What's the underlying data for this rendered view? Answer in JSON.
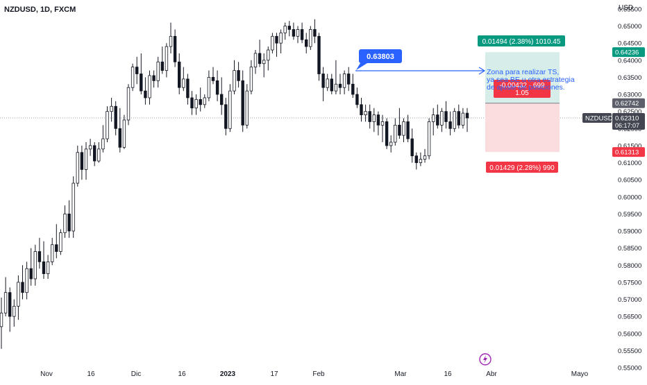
{
  "header": {
    "symbol_line": "NZDUSD, 1D, FXCM",
    "currency": "USD"
  },
  "chart_data": {
    "type": "candlestick",
    "y_axis": {
      "ticks": [
        "0.65500",
        "0.65000",
        "0.64500",
        "0.64000",
        "0.63500",
        "0.63000",
        "0.62500",
        "0.62000",
        "0.61500",
        "0.61000",
        "0.60500",
        "0.60000",
        "0.59500",
        "0.59000",
        "0.58500",
        "0.58000",
        "0.57500",
        "0.57000",
        "0.56500",
        "0.56000",
        "0.55500",
        "0.55000"
      ],
      "range": [
        0.55,
        0.656
      ]
    },
    "x_axis": {
      "ticks": [
        {
          "label": "Nov",
          "bold": false
        },
        {
          "label": "16",
          "bold": false
        },
        {
          "label": "Dic",
          "bold": false
        },
        {
          "label": "16",
          "bold": false
        },
        {
          "label": "2023",
          "bold": true
        },
        {
          "label": "17",
          "bold": false
        },
        {
          "label": "Feb",
          "bold": false
        },
        {
          "label": "Mar",
          "bold": false
        },
        {
          "label": "16",
          "bold": false
        },
        {
          "label": "Abr",
          "bold": false
        },
        {
          "label": "Mayo",
          "bold": false
        }
      ]
    },
    "candles": [
      [
        0.562,
        0.5705,
        0.5555,
        0.566
      ],
      [
        0.566,
        0.5765,
        0.565,
        0.572
      ],
      [
        0.572,
        0.5735,
        0.5605,
        0.565
      ],
      [
        0.565,
        0.57,
        0.562,
        0.568
      ],
      [
        0.568,
        0.577,
        0.564,
        0.575
      ],
      [
        0.575,
        0.58,
        0.57,
        0.572
      ],
      [
        0.572,
        0.581,
        0.57,
        0.579
      ],
      [
        0.579,
        0.585,
        0.574,
        0.576
      ],
      [
        0.576,
        0.586,
        0.574,
        0.584
      ],
      [
        0.584,
        0.588,
        0.579,
        0.581
      ],
      [
        0.581,
        0.587,
        0.576,
        0.5775
      ],
      [
        0.5775,
        0.583,
        0.576,
        0.581
      ],
      [
        0.581,
        0.588,
        0.58,
        0.586
      ],
      [
        0.586,
        0.592,
        0.582,
        0.584
      ],
      [
        0.584,
        0.5905,
        0.583,
        0.5895
      ],
      [
        0.5895,
        0.5975,
        0.588,
        0.595
      ],
      [
        0.595,
        0.599,
        0.588,
        0.59
      ],
      [
        0.59,
        0.606,
        0.588,
        0.604
      ],
      [
        0.604,
        0.615,
        0.603,
        0.613
      ],
      [
        0.613,
        0.615,
        0.605,
        0.608
      ],
      [
        0.608,
        0.616,
        0.605,
        0.614
      ],
      [
        0.614,
        0.617,
        0.612,
        0.615
      ],
      [
        0.615,
        0.616,
        0.609,
        0.6105
      ],
      [
        0.6105,
        0.616,
        0.61,
        0.614
      ],
      [
        0.614,
        0.621,
        0.613,
        0.617
      ],
      [
        0.617,
        0.6265,
        0.616,
        0.625
      ],
      [
        0.625,
        0.629,
        0.622,
        0.6265
      ],
      [
        0.6265,
        0.628,
        0.618,
        0.62
      ],
      [
        0.62,
        0.626,
        0.613,
        0.6145
      ],
      [
        0.6145,
        0.624,
        0.614,
        0.6225
      ],
      [
        0.6225,
        0.633,
        0.621,
        0.632
      ],
      [
        0.632,
        0.639,
        0.631,
        0.638
      ],
      [
        0.638,
        0.641,
        0.633,
        0.636
      ],
      [
        0.636,
        0.642,
        0.63,
        0.631
      ],
      [
        0.631,
        0.635,
        0.627,
        0.629
      ],
      [
        0.629,
        0.637,
        0.627,
        0.6355
      ],
      [
        0.6355,
        0.637,
        0.632,
        0.634
      ],
      [
        0.634,
        0.641,
        0.632,
        0.6395
      ],
      [
        0.6395,
        0.644,
        0.636,
        0.637
      ],
      [
        0.637,
        0.645,
        0.635,
        0.644
      ],
      [
        0.644,
        0.651,
        0.642,
        0.647
      ],
      [
        0.647,
        0.649,
        0.638,
        0.6395
      ],
      [
        0.6395,
        0.642,
        0.63,
        0.632
      ],
      [
        0.632,
        0.638,
        0.631,
        0.6345
      ],
      [
        0.6345,
        0.636,
        0.627,
        0.629
      ],
      [
        0.629,
        0.631,
        0.624,
        0.626
      ],
      [
        0.626,
        0.63,
        0.624,
        0.6285
      ],
      [
        0.6285,
        0.632,
        0.625,
        0.627
      ],
      [
        0.627,
        0.63,
        0.626,
        0.629
      ],
      [
        0.629,
        0.637,
        0.628,
        0.635
      ],
      [
        0.635,
        0.638,
        0.633,
        0.634
      ],
      [
        0.634,
        0.637,
        0.628,
        0.63
      ],
      [
        0.63,
        0.635,
        0.624,
        0.627
      ],
      [
        0.627,
        0.629,
        0.618,
        0.62
      ],
      [
        0.62,
        0.633,
        0.619,
        0.631
      ],
      [
        0.631,
        0.64,
        0.63,
        0.637
      ],
      [
        0.637,
        0.6395,
        0.632,
        0.634
      ],
      [
        0.634,
        0.637,
        0.619,
        0.621
      ],
      [
        0.621,
        0.633,
        0.62,
        0.631
      ],
      [
        0.631,
        0.64,
        0.63,
        0.638
      ],
      [
        0.638,
        0.643,
        0.636,
        0.642
      ],
      [
        0.642,
        0.646,
        0.638,
        0.639
      ],
      [
        0.639,
        0.642,
        0.635,
        0.64
      ],
      [
        0.64,
        0.644,
        0.637,
        0.643
      ],
      [
        0.643,
        0.648,
        0.642,
        0.647
      ],
      [
        0.647,
        0.648,
        0.641,
        0.645
      ],
      [
        0.645,
        0.649,
        0.642,
        0.648
      ],
      [
        0.648,
        0.651,
        0.646,
        0.65
      ],
      [
        0.65,
        0.6515,
        0.647,
        0.649
      ],
      [
        0.649,
        0.651,
        0.646,
        0.647
      ],
      [
        0.647,
        0.65,
        0.645,
        0.649
      ],
      [
        0.649,
        0.651,
        0.645,
        0.646
      ],
      [
        0.646,
        0.648,
        0.642,
        0.644
      ],
      [
        0.644,
        0.65,
        0.643,
        0.649
      ],
      [
        0.649,
        0.652,
        0.645,
        0.647
      ],
      [
        0.647,
        0.648,
        0.634,
        0.636
      ],
      [
        0.636,
        0.638,
        0.628,
        0.632
      ],
      [
        0.632,
        0.636,
        0.631,
        0.6345
      ],
      [
        0.6345,
        0.636,
        0.63,
        0.631
      ],
      [
        0.631,
        0.64,
        0.63,
        0.633
      ],
      [
        0.633,
        0.636,
        0.63,
        0.632
      ],
      [
        0.632,
        0.637,
        0.63,
        0.636
      ],
      [
        0.636,
        0.638,
        0.631,
        0.633
      ],
      [
        0.633,
        0.636,
        0.629,
        0.63
      ],
      [
        0.63,
        0.632,
        0.626,
        0.627
      ],
      [
        0.627,
        0.629,
        0.622,
        0.624
      ],
      [
        0.624,
        0.627,
        0.622,
        0.625
      ],
      [
        0.625,
        0.627,
        0.62,
        0.622
      ],
      [
        0.622,
        0.626,
        0.619,
        0.624
      ],
      [
        0.624,
        0.625,
        0.618,
        0.621
      ],
      [
        0.621,
        0.624,
        0.616,
        0.622
      ],
      [
        0.622,
        0.623,
        0.614,
        0.615
      ],
      [
        0.615,
        0.618,
        0.613,
        0.616
      ],
      [
        0.616,
        0.623,
        0.615,
        0.621
      ],
      [
        0.621,
        0.626,
        0.617,
        0.618
      ],
      [
        0.618,
        0.623,
        0.616,
        0.622
      ],
      [
        0.622,
        0.624,
        0.616,
        0.617
      ],
      [
        0.617,
        0.62,
        0.61,
        0.612
      ],
      [
        0.612,
        0.613,
        0.608,
        0.61
      ],
      [
        0.61,
        0.613,
        0.609,
        0.611
      ],
      [
        0.611,
        0.614,
        0.61,
        0.612
      ],
      [
        0.612,
        0.623,
        0.611,
        0.622
      ],
      [
        0.622,
        0.626,
        0.618,
        0.624
      ],
      [
        0.624,
        0.627,
        0.62,
        0.621
      ],
      [
        0.621,
        0.626,
        0.619,
        0.625
      ],
      [
        0.625,
        0.628,
        0.62,
        0.622
      ],
      [
        0.622,
        0.625,
        0.618,
        0.62
      ],
      [
        0.62,
        0.626,
        0.619,
        0.625
      ],
      [
        0.625,
        0.627,
        0.62,
        0.621
      ],
      [
        0.621,
        0.626,
        0.62,
        0.6245
      ],
      [
        0.6245,
        0.626,
        0.619,
        0.6231
      ]
    ],
    "levels": {
      "current_price": 0.6231,
      "entry": 0.62742,
      "target": 0.64236,
      "stop": 0.61313,
      "annotation_price": 0.63803
    },
    "position_tool": {
      "target_label": "0.01494 (2.38%) 1010.45",
      "stop_label": "0.01429 (2.28%) 990",
      "pnl_label": "-0.00432 · 699",
      "ratio_label": "1.05"
    },
    "price_labels": {
      "symbol": "NZDUSD",
      "current": "0.62310",
      "countdown": "06:17:07",
      "entry": "0.62742",
      "target": "0.64236",
      "stop": "0.61313"
    },
    "annotations": {
      "price_callout": "0.63803",
      "note_lines": [
        "Zona para realizar TS,",
        "ya sea BE u otra estrategia",
        "de ajuste de posiciones."
      ]
    },
    "colors": {
      "up_wick": "#131722",
      "bull_body": "#ffffff",
      "bear_body": "#131722",
      "target_zone": "#d6ede9",
      "stop_zone": "#fbdcdf",
      "target_badge": "#089981",
      "stop_badge": "#f23645",
      "callout": "#2962ff",
      "entry_badge": "#5d606b",
      "current_badge": "#434651",
      "event_icon": "#9c27b0"
    }
  }
}
